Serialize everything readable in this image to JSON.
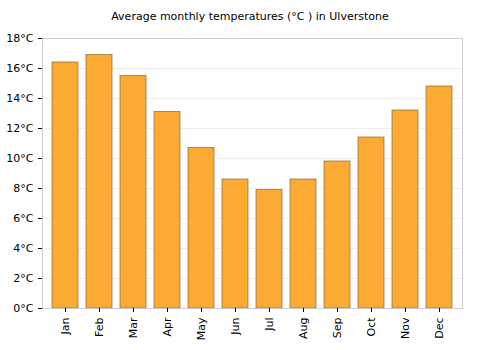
{
  "chart_data": {
    "type": "bar",
    "title": "Average monthly temperatures (°C ) in Ulverstone",
    "categories": [
      "Jan",
      "Feb",
      "Mar",
      "Apr",
      "May",
      "Jun",
      "Jul",
      "Aug",
      "Sep",
      "Oct",
      "Nov",
      "Dec"
    ],
    "values": [
      16.4,
      16.9,
      15.5,
      13.1,
      10.7,
      8.6,
      7.9,
      8.6,
      9.8,
      11.4,
      13.2,
      14.8
    ],
    "color": "#fbaa33",
    "ylim": [
      0,
      18
    ],
    "yticks": [
      {
        "value": 0,
        "label": "0°C"
      },
      {
        "value": 2,
        "label": "2°C"
      },
      {
        "value": 4,
        "label": "4°C"
      },
      {
        "value": 6,
        "label": "6°C"
      },
      {
        "value": 8,
        "label": "8°C"
      },
      {
        "value": 10,
        "label": "10°C"
      },
      {
        "value": 12,
        "label": "12°C"
      },
      {
        "value": 14,
        "label": "14°C"
      },
      {
        "value": 16,
        "label": "16°C"
      },
      {
        "value": 18,
        "label": "18°C"
      }
    ],
    "grid": true
  }
}
